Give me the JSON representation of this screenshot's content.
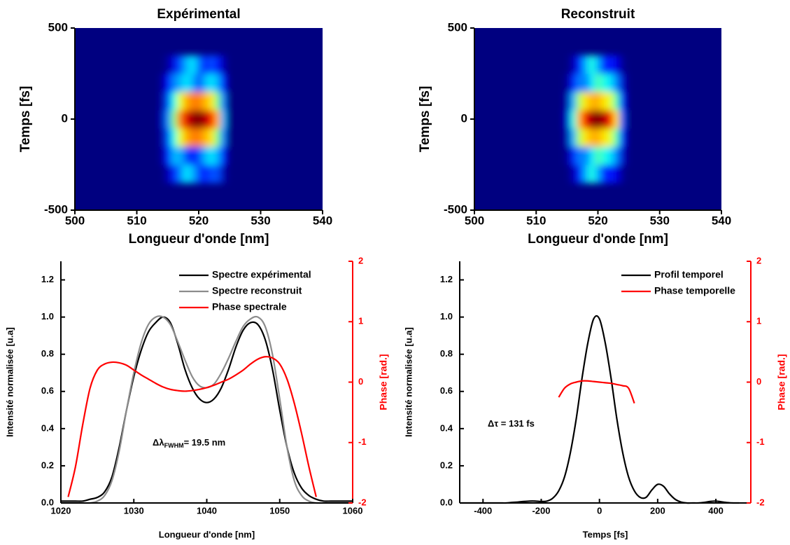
{
  "chart_data": [
    {
      "type": "heatmap",
      "title": "Expérimental",
      "xlabel": "Longueur d'onde [nm]",
      "ylabel": "Temps [fs]",
      "colormap": "jet",
      "x": [
        514,
        515,
        516,
        517,
        518,
        519,
        520,
        521,
        522,
        523,
        524,
        525
      ],
      "y": [
        -300,
        -200,
        -100,
        0,
        100,
        200,
        300
      ],
      "z": [
        [
          0,
          0.05,
          0.15,
          0.25,
          0.35,
          0.3,
          0.2,
          0.15,
          0.2,
          0.2,
          0.05,
          0
        ],
        [
          0.02,
          0.15,
          0.3,
          0.3,
          0.2,
          0.15,
          0.2,
          0.3,
          0.35,
          0.3,
          0.15,
          0
        ],
        [
          0.03,
          0.2,
          0.4,
          0.6,
          0.7,
          0.75,
          0.75,
          0.7,
          0.65,
          0.5,
          0.25,
          0
        ],
        [
          0.05,
          0.25,
          0.5,
          0.75,
          0.9,
          0.97,
          1.0,
          0.95,
          0.85,
          0.7,
          0.3,
          0
        ],
        [
          0.03,
          0.2,
          0.4,
          0.6,
          0.7,
          0.75,
          0.75,
          0.7,
          0.65,
          0.5,
          0.25,
          0
        ],
        [
          0.02,
          0.12,
          0.25,
          0.3,
          0.35,
          0.3,
          0.2,
          0.3,
          0.35,
          0.3,
          0.15,
          0
        ],
        [
          0,
          0.03,
          0.1,
          0.2,
          0.3,
          0.35,
          0.25,
          0.15,
          0.2,
          0.15,
          0.05,
          0
        ]
      ],
      "xlim": [
        500,
        540
      ],
      "xticks": [
        500,
        510,
        520,
        530,
        540
      ],
      "ylim": [
        -500,
        500
      ],
      "yticks": [
        -500,
        0,
        500
      ]
    },
    {
      "type": "heatmap",
      "title": "Reconstruit",
      "xlabel": "Longueur d'onde [nm]",
      "ylabel": "Temps [fs]",
      "colormap": "jet",
      "x": [
        514,
        515,
        516,
        517,
        518,
        519,
        520,
        521,
        522,
        523,
        524,
        525
      ],
      "y": [
        -300,
        -200,
        -100,
        0,
        100,
        200,
        300
      ],
      "z": [
        [
          0,
          0,
          0.05,
          0.15,
          0.3,
          0.4,
          0.3,
          0.15,
          0.15,
          0.1,
          0.02,
          0
        ],
        [
          0,
          0.02,
          0.15,
          0.25,
          0.25,
          0.35,
          0.45,
          0.4,
          0.35,
          0.25,
          0.08,
          0
        ],
        [
          0,
          0.05,
          0.3,
          0.55,
          0.65,
          0.7,
          0.7,
          0.65,
          0.6,
          0.45,
          0.15,
          0
        ],
        [
          0,
          0.08,
          0.4,
          0.7,
          0.88,
          0.97,
          1.0,
          0.95,
          0.85,
          0.65,
          0.2,
          0
        ],
        [
          0,
          0.05,
          0.3,
          0.55,
          0.65,
          0.7,
          0.7,
          0.65,
          0.6,
          0.45,
          0.15,
          0
        ],
        [
          0,
          0.02,
          0.15,
          0.25,
          0.25,
          0.35,
          0.45,
          0.4,
          0.35,
          0.25,
          0.08,
          0
        ],
        [
          0,
          0,
          0.05,
          0.15,
          0.3,
          0.4,
          0.3,
          0.15,
          0.15,
          0.1,
          0.02,
          0
        ]
      ],
      "xlim": [
        500,
        540
      ],
      "xticks": [
        500,
        510,
        520,
        530,
        540
      ],
      "ylim": [
        -500,
        500
      ],
      "yticks": [
        -500,
        0,
        500
      ]
    },
    {
      "type": "line",
      "xlabel": "Longueur d'onde [nm]",
      "ylabel": "Intensité normalisée [u.a]",
      "y2label": "Phase [rad.]",
      "y2color": "#ff0000",
      "legend": "upper right",
      "x": [
        1020,
        1021,
        1022,
        1023,
        1024,
        1025,
        1026,
        1027,
        1028,
        1029,
        1030,
        1031,
        1032,
        1033,
        1034,
        1035,
        1036,
        1037,
        1038,
        1039,
        1040,
        1041,
        1042,
        1043,
        1044,
        1045,
        1046,
        1047,
        1048,
        1049,
        1050,
        1051,
        1052,
        1053,
        1054,
        1055,
        1056,
        1057,
        1058,
        1059,
        1060
      ],
      "series": [
        {
          "name": "Spectre expérimental",
          "color": "#000000",
          "values": [
            0.01,
            0.01,
            0.01,
            0.01,
            0.02,
            0.03,
            0.06,
            0.14,
            0.3,
            0.5,
            0.68,
            0.82,
            0.92,
            0.97,
            1.0,
            0.97,
            0.86,
            0.72,
            0.62,
            0.56,
            0.54,
            0.56,
            0.62,
            0.72,
            0.84,
            0.93,
            0.97,
            0.96,
            0.88,
            0.72,
            0.5,
            0.3,
            0.16,
            0.08,
            0.04,
            0.02,
            0.01,
            0.01,
            0.01,
            0.01,
            0.01
          ]
        },
        {
          "name": "Spectre reconstruit",
          "color": "#8c8c8c",
          "values": [
            0,
            0,
            0,
            0,
            0,
            0.01,
            0.04,
            0.12,
            0.28,
            0.5,
            0.7,
            0.86,
            0.96,
            1.0,
            1.0,
            0.96,
            0.87,
            0.77,
            0.68,
            0.63,
            0.62,
            0.64,
            0.7,
            0.78,
            0.87,
            0.95,
            0.99,
            1.0,
            0.95,
            0.8,
            0.56,
            0.3,
            0.12,
            0.04,
            0.01,
            0,
            0,
            0,
            0,
            0,
            0
          ]
        },
        {
          "name": "Phase spectrale",
          "color": "#ff0000",
          "axis": "y2",
          "values": [
            null,
            -1.9,
            -1.4,
            -0.7,
            -0.1,
            0.2,
            0.3,
            0.33,
            0.32,
            0.28,
            0.2,
            0.12,
            0.05,
            -0.02,
            -0.08,
            -0.12,
            -0.14,
            -0.15,
            -0.14,
            -0.12,
            -0.09,
            -0.05,
            0.0,
            0.05,
            0.12,
            0.2,
            0.3,
            0.38,
            0.42,
            0.4,
            0.3,
            0.05,
            -0.35,
            -0.85,
            -1.4,
            -1.9,
            null,
            null,
            null,
            null,
            null
          ]
        }
      ],
      "annotations": [
        {
          "text": "Δλ",
          "subscript": "FWHM",
          "suffix": "= 19.5 nm"
        }
      ],
      "xlim": [
        1020,
        1060
      ],
      "xticks": [
        1020,
        1030,
        1040,
        1050,
        1060
      ],
      "ylim": [
        0,
        1.3
      ],
      "yticks": [
        {
          "value": 0,
          "label": "0.0"
        },
        0.2,
        0.4,
        0.6,
        0.8,
        {
          "value": 1,
          "label": "1.0"
        },
        1.2
      ],
      "y2lim": [
        -2,
        2
      ],
      "y2ticks": [
        -2,
        -1,
        0,
        1,
        2
      ]
    },
    {
      "type": "line",
      "xlabel": "Temps [fs]",
      "ylabel": "Intensité normalisée [u.a]",
      "y2label": "Phase [rad.]",
      "y2color": "#ff0000",
      "legend": "upper right",
      "x": [
        -480,
        -460,
        -440,
        -420,
        -400,
        -380,
        -360,
        -340,
        -320,
        -300,
        -280,
        -260,
        -240,
        -220,
        -200,
        -180,
        -160,
        -140,
        -120,
        -100,
        -80,
        -60,
        -40,
        -20,
        0,
        20,
        40,
        60,
        80,
        100,
        120,
        140,
        160,
        180,
        200,
        220,
        240,
        260,
        280,
        300,
        320,
        340,
        360,
        380,
        400,
        420,
        440,
        460,
        480
      ],
      "series": [
        {
          "name": "Profil temporel",
          "color": "#000000",
          "values": [
            0,
            0,
            0,
            0,
            0,
            0,
            0,
            0,
            0,
            0.003,
            0.005,
            0.008,
            0.01,
            0.01,
            0.008,
            0.01,
            0.026,
            0.065,
            0.14,
            0.27,
            0.45,
            0.67,
            0.86,
            0.99,
            0.99,
            0.86,
            0.67,
            0.45,
            0.27,
            0.14,
            0.065,
            0.03,
            0.03,
            0.07,
            0.1,
            0.09,
            0.05,
            0.02,
            0.005,
            0,
            0,
            0,
            0.003,
            0.008,
            0.01,
            0.006,
            0.002,
            0,
            0
          ]
        },
        {
          "name": "Phase temporelle",
          "color": "#ff0000",
          "axis": "y2",
          "values": [
            null,
            null,
            null,
            null,
            null,
            null,
            null,
            null,
            null,
            null,
            null,
            null,
            null,
            null,
            null,
            null,
            null,
            -0.25,
            -0.1,
            -0.03,
            0.0,
            0.02,
            0.02,
            0.01,
            0.0,
            -0.01,
            -0.02,
            -0.04,
            -0.06,
            -0.1,
            -0.35,
            null,
            null,
            null,
            null,
            null,
            null,
            null,
            null,
            null,
            null,
            null,
            null,
            null,
            null,
            null,
            null,
            null,
            null
          ]
        }
      ],
      "annotations": [
        {
          "text": "Δτ = 131 fs"
        }
      ],
      "xlim": [
        -480,
        520
      ],
      "xticks": [
        -400,
        -200,
        0,
        200,
        400
      ],
      "ylim": [
        0,
        1.3
      ],
      "yticks": [
        {
          "value": 0,
          "label": "0.0"
        },
        0.2,
        0.4,
        0.6,
        0.8,
        {
          "value": 1,
          "label": "1.0"
        },
        1.2
      ],
      "y2lim": [
        -2,
        2
      ],
      "y2ticks": [
        -2,
        -1,
        0,
        1,
        2
      ]
    }
  ]
}
